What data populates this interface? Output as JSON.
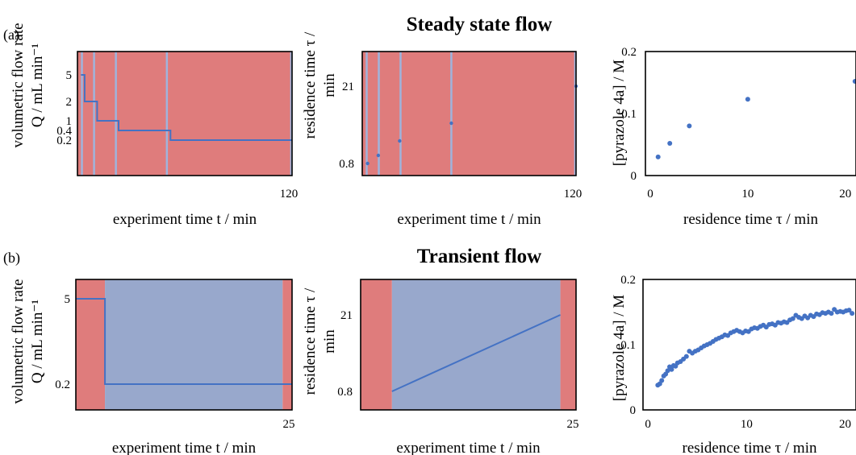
{
  "sections": [
    {
      "title": "Steady state flow",
      "label": "(a)"
    },
    {
      "title": "Transient flow",
      "label": "(b)"
    }
  ],
  "colors": {
    "red_region": "#df7c7c",
    "blue_region": "#98a8cc",
    "marker_line": "#9fb4dc",
    "series_line": "#4472c4",
    "dots": "#4472c4"
  },
  "chart_data": [
    {
      "id": "a1",
      "type": "line",
      "xlabel": "experiment time t / min",
      "ylabel_lines": [
        "volumetric flow rate",
        "Q / mL min⁻¹"
      ],
      "xticks": [
        "120"
      ],
      "yticks": [
        "5",
        "2",
        "1",
        "0.4",
        "0.2"
      ],
      "xlim": [
        0,
        120
      ],
      "background": "red",
      "marker_lines_x": [
        2.5,
        9.3,
        21.5,
        50.0,
        119.5
      ],
      "series": [
        {
          "points": [
            [
              2,
              5
            ],
            [
              4,
              5
            ],
            [
              4,
              2
            ],
            [
              11,
              2
            ],
            [
              11,
              1
            ],
            [
              23,
              1
            ],
            [
              23,
              0.4
            ],
            [
              52,
              0.4
            ],
            [
              52,
              0.2
            ],
            [
              120,
              0.2
            ]
          ]
        }
      ]
    },
    {
      "id": "a2",
      "type": "scatter",
      "xlabel": "experiment time t / min",
      "ylabel_lines": [
        "residence time τ /",
        "min"
      ],
      "xticks": [
        "120"
      ],
      "yticks": [
        "21",
        "0.8"
      ],
      "xlim": [
        0,
        120
      ],
      "background": "red",
      "marker_lines_x": [
        2.5,
        9.3,
        21.5,
        50.0,
        119.5
      ],
      "series": [
        {
          "points": [
            [
              3,
              0.8
            ],
            [
              9,
              2
            ],
            [
              21,
              4
            ],
            [
              50,
              10
            ],
            [
              120,
              21
            ]
          ]
        }
      ]
    },
    {
      "id": "a3",
      "type": "scatter",
      "xlabel": "residence time τ / min",
      "ylabel_lines": [
        "[pyrazole 4a] / M"
      ],
      "xticks": [
        "0",
        "10",
        "20"
      ],
      "yticks": [
        "0.2",
        "0.1",
        "0"
      ],
      "xlim": [
        -0.5,
        21.1
      ],
      "ylim": [
        0,
        0.2
      ],
      "series": [
        {
          "points": [
            [
              0.8,
              0.03
            ],
            [
              2,
              0.052
            ],
            [
              4,
              0.08
            ],
            [
              10,
              0.123
            ],
            [
              21,
              0.152
            ]
          ]
        }
      ]
    },
    {
      "id": "b1",
      "type": "line",
      "xlabel": "experiment time t / min",
      "ylabel_lines": [
        "volumetric flow rate",
        "Q / mL min⁻¹"
      ],
      "xticks": [
        "25"
      ],
      "yticks": [
        "5",
        "0.2"
      ],
      "xlim": [
        0,
        27.5
      ],
      "regions": [
        {
          "from": 0,
          "to": 3.7,
          "color": "red"
        },
        {
          "from": 3.7,
          "to": 26.3,
          "color": "blue"
        },
        {
          "from": 26.3,
          "to": 27.5,
          "color": "red"
        }
      ],
      "series": [
        {
          "points": [
            [
              0,
              5
            ],
            [
              3.7,
              5
            ],
            [
              3.7,
              0.2
            ],
            [
              27.5,
              0.2
            ]
          ]
        }
      ]
    },
    {
      "id": "b2",
      "type": "line",
      "xlabel": "experiment time t / min",
      "ylabel_lines": [
        "residence time τ /",
        "min"
      ],
      "xticks": [
        "25"
      ],
      "yticks": [
        "21",
        "0.8"
      ],
      "xlim": [
        0,
        27.5
      ],
      "regions": [
        {
          "from": 0,
          "to": 4.0,
          "color": "red"
        },
        {
          "from": 4.0,
          "to": 25.5,
          "color": "blue"
        },
        {
          "from": 25.5,
          "to": 27.5,
          "color": "red"
        }
      ],
      "series": [
        {
          "points": [
            [
              4.0,
              0.8
            ],
            [
              25.5,
              21
            ]
          ]
        }
      ]
    },
    {
      "id": "b3",
      "type": "scatter",
      "xlabel": "residence time τ / min",
      "ylabel_lines": [
        "[pyrazole 4a] / M"
      ],
      "xticks": [
        "0",
        "10",
        "20"
      ],
      "yticks": [
        "0.2",
        "0.1",
        "0"
      ],
      "xlim": [
        -0.5,
        21.1
      ],
      "ylim": [
        0,
        0.2
      ],
      "series": [
        {
          "points": [
            [
              1.0,
              0.038
            ],
            [
              1.2,
              0.04
            ],
            [
              1.4,
              0.045
            ],
            [
              1.6,
              0.052
            ],
            [
              1.8,
              0.055
            ],
            [
              2.0,
              0.06
            ],
            [
              2.2,
              0.066
            ],
            [
              2.4,
              0.062
            ],
            [
              2.6,
              0.068
            ],
            [
              2.8,
              0.067
            ],
            [
              3.0,
              0.072
            ],
            [
              3.3,
              0.074
            ],
            [
              3.6,
              0.078
            ],
            [
              3.9,
              0.082
            ],
            [
              4.2,
              0.09
            ],
            [
              4.5,
              0.087
            ],
            [
              4.8,
              0.09
            ],
            [
              5.1,
              0.092
            ],
            [
              5.4,
              0.095
            ],
            [
              5.7,
              0.098
            ],
            [
              6.0,
              0.1
            ],
            [
              6.3,
              0.102
            ],
            [
              6.6,
              0.105
            ],
            [
              6.9,
              0.108
            ],
            [
              7.2,
              0.11
            ],
            [
              7.5,
              0.112
            ],
            [
              7.8,
              0.115
            ],
            [
              8.1,
              0.114
            ],
            [
              8.4,
              0.118
            ],
            [
              8.7,
              0.12
            ],
            [
              9.0,
              0.122
            ],
            [
              9.3,
              0.12
            ],
            [
              9.6,
              0.118
            ],
            [
              9.9,
              0.121
            ],
            [
              10.2,
              0.12
            ],
            [
              10.5,
              0.124
            ],
            [
              10.8,
              0.126
            ],
            [
              11.1,
              0.125
            ],
            [
              11.4,
              0.128
            ],
            [
              11.7,
              0.13
            ],
            [
              12.0,
              0.127
            ],
            [
              12.3,
              0.131
            ],
            [
              12.6,
              0.132
            ],
            [
              12.9,
              0.13
            ],
            [
              13.2,
              0.134
            ],
            [
              13.5,
              0.133
            ],
            [
              13.8,
              0.135
            ],
            [
              14.1,
              0.134
            ],
            [
              14.4,
              0.138
            ],
            [
              14.7,
              0.14
            ],
            [
              15.0,
              0.145
            ],
            [
              15.3,
              0.142
            ],
            [
              15.6,
              0.14
            ],
            [
              15.9,
              0.144
            ],
            [
              16.2,
              0.141
            ],
            [
              16.5,
              0.145
            ],
            [
              16.8,
              0.143
            ],
            [
              17.1,
              0.147
            ],
            [
              17.4,
              0.146
            ],
            [
              17.7,
              0.149
            ],
            [
              18.0,
              0.148
            ],
            [
              18.3,
              0.15
            ],
            [
              18.6,
              0.148
            ],
            [
              18.9,
              0.154
            ],
            [
              19.2,
              0.15
            ],
            [
              19.5,
              0.151
            ],
            [
              19.8,
              0.15
            ],
            [
              20.1,
              0.152
            ],
            [
              20.4,
              0.153
            ],
            [
              20.7,
              0.148
            ]
          ]
        }
      ]
    }
  ]
}
